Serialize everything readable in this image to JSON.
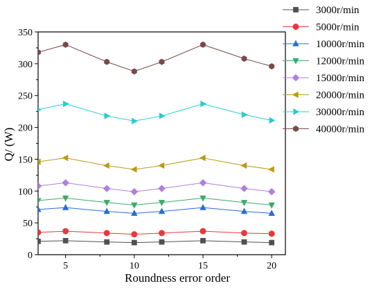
{
  "chart_data": {
    "type": "line",
    "title": "",
    "xlabel": "Roundness error order",
    "ylabel": "Q/ (W)",
    "xlim": [
      3,
      21
    ],
    "ylim": [
      0,
      350
    ],
    "xticks": [
      5,
      10,
      15,
      20
    ],
    "yticks": [
      0,
      50,
      100,
      150,
      200,
      250,
      300,
      350
    ],
    "grid": false,
    "legend": "right",
    "x": [
      3,
      5,
      8,
      10,
      12,
      15,
      18,
      20
    ],
    "series": [
      {
        "name": "3000r/min",
        "color": "#505050",
        "marker": "square",
        "values": [
          21,
          22,
          20,
          19,
          20,
          22,
          20,
          19
        ]
      },
      {
        "name": "5000r/min",
        "color": "#e8383d",
        "marker": "circle",
        "values": [
          35,
          37,
          34,
          32,
          34,
          37,
          34,
          33
        ]
      },
      {
        "name": "10000r/min",
        "color": "#2a6bd8",
        "marker": "triangle-up",
        "values": [
          71,
          74,
          68,
          65,
          68,
          74,
          68,
          65
        ]
      },
      {
        "name": "12000r/min",
        "color": "#3aaa6a",
        "marker": "triangle-down",
        "values": [
          85,
          89,
          82,
          78,
          82,
          89,
          82,
          78
        ]
      },
      {
        "name": "15000r/min",
        "color": "#b07ee0",
        "marker": "diamond",
        "values": [
          108,
          113,
          104,
          99,
          104,
          113,
          104,
          99
        ]
      },
      {
        "name": "20000r/min",
        "color": "#bb9a12",
        "marker": "triangle-left",
        "values": [
          146,
          152,
          140,
          134,
          140,
          152,
          140,
          134
        ]
      },
      {
        "name": "30000r/min",
        "color": "#26cdd0",
        "marker": "triangle-right",
        "values": [
          228,
          237,
          218,
          210,
          218,
          237,
          220,
          211
        ]
      },
      {
        "name": "40000r/min",
        "color": "#7a4a4a",
        "marker": "hexagon",
        "values": [
          318,
          330,
          303,
          288,
          303,
          330,
          308,
          296
        ]
      }
    ]
  }
}
